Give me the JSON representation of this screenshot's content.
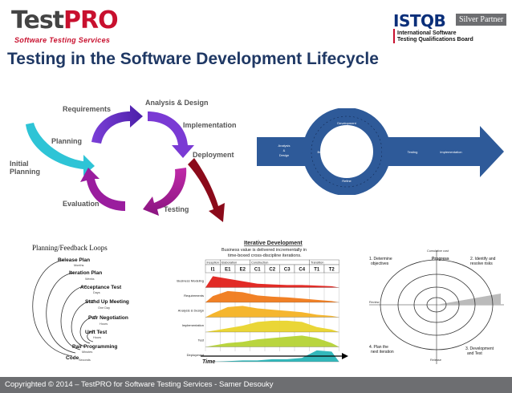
{
  "header": {
    "logo_left_brand_a": "Test",
    "logo_left_brand_b": "PRO",
    "logo_left_tagline": "Software Testing Services",
    "logo_right_name": "ISTQB",
    "logo_right_badge": "Silver Partner",
    "logo_right_line1": "International Software",
    "logo_right_line2": "Testing Qualifications Board"
  },
  "title": "Testing in the Software Development Lifecycle",
  "cycle": {
    "labels": [
      "Requirements",
      "Analysis & Design",
      "Implementation",
      "Deployment",
      "Testing",
      "Evaluation",
      "Planning",
      "Initial",
      "Planning"
    ],
    "colors": {
      "cyan": "#2ec4d6",
      "purple": "#6a2cc6",
      "magenta": "#b0179a",
      "red": "#8b0a1a",
      "text": "#555555"
    }
  },
  "ring": {
    "left_box": [
      "Analysis",
      "&",
      "Design"
    ],
    "build": "Build",
    "top": "Development",
    "bottom": "Refine",
    "right_a": "Testing",
    "right_b": "Implementation",
    "color": "#2e5a99"
  },
  "loops": {
    "title": "Planning/Feedback Loops",
    "items": [
      "Release Plan",
      "Iteration Plan",
      "Acceptance Test",
      "Stand Up Meeting",
      "Pair Negotiation",
      "Unit Test",
      "Pair Programming",
      "Code"
    ],
    "periods": [
      "Months",
      "Weeks",
      "Days",
      "One Day",
      "Hours",
      "Hours",
      "Minutes",
      "Seconds"
    ]
  },
  "iterative": {
    "title": "Iterative Development",
    "subtitle1": "Business value is delivered incrementally in",
    "subtitle2": "time-boxed cross-discipline iterations.",
    "phases": [
      "Inception",
      "Elaboration",
      "Construction",
      "Transition"
    ],
    "iterations": [
      "I1",
      "E1",
      "E2",
      "C1",
      "C2",
      "C3",
      "C4",
      "T1",
      "T2"
    ],
    "disciplines": [
      "Business Modeling",
      "Requirements",
      "Analysis & Design",
      "Implementation",
      "Test",
      "Deployment"
    ],
    "time_label": "Time",
    "colors": [
      "#e0201a",
      "#f07a1a",
      "#f4b223",
      "#e9d42c",
      "#b5d334",
      "#28b4b7"
    ]
  },
  "spiral": {
    "q1": [
      "1. Determine",
      "objectives"
    ],
    "q2": [
      "2. Identify and",
      "resolve risks"
    ],
    "q3": [
      "3. Development",
      "and Test"
    ],
    "q4": [
      "4. Plan the",
      "next iteration"
    ],
    "top_label": "Cumulative cost",
    "progress": "Progress",
    "review": "Review",
    "release": "Release"
  },
  "footer": {
    "text": "Copyrighted © 2014 – TestPRO for Software Testing Services - Samer Desouky"
  }
}
